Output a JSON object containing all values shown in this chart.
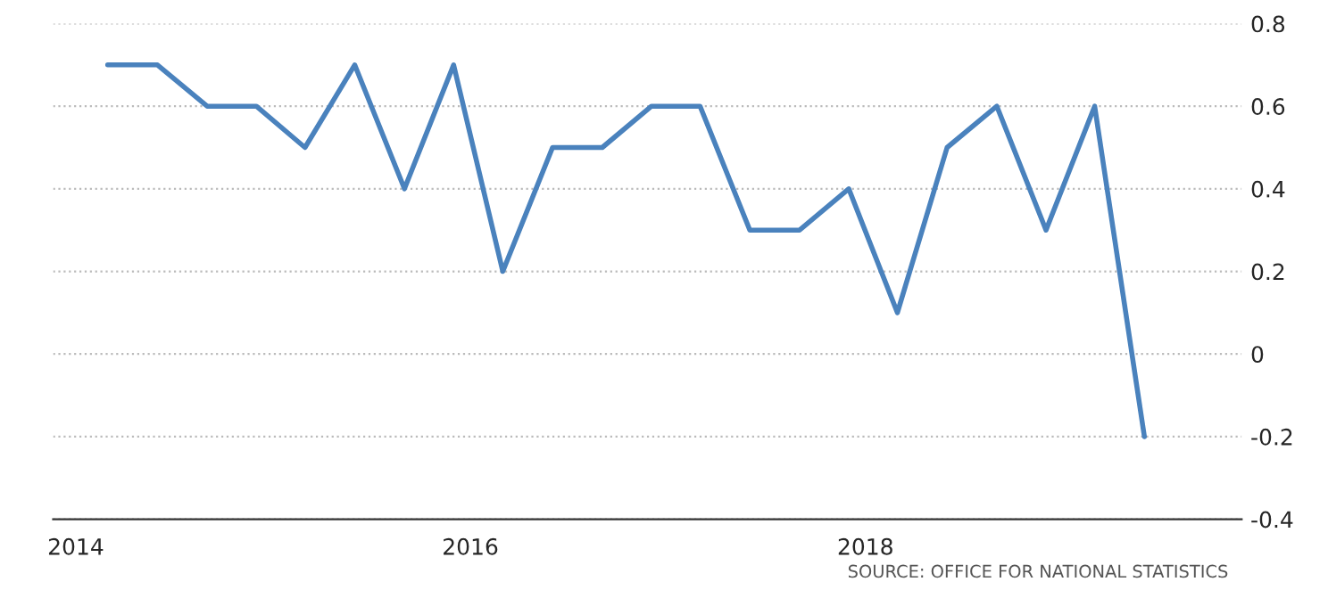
{
  "chart_data": {
    "type": "line",
    "x": [
      "2014-03",
      "2014-06",
      "2014-09",
      "2014-12",
      "2015-03",
      "2015-06",
      "2015-09",
      "2015-12",
      "2016-03",
      "2016-06",
      "2016-09",
      "2016-12",
      "2017-03",
      "2017-06",
      "2017-09",
      "2017-12",
      "2018-03",
      "2018-06",
      "2018-09",
      "2018-12",
      "2019-03",
      "2019-06"
    ],
    "series": [
      {
        "color": "#4a82bd",
        "values": [
          0.7,
          0.7,
          0.6,
          0.6,
          0.5,
          0.7,
          0.4,
          0.7,
          0.2,
          0.5,
          0.5,
          0.6,
          0.6,
          0.3,
          0.3,
          0.4,
          0.1,
          0.5,
          0.6,
          0.3,
          0.6,
          -0.2
        ]
      }
    ],
    "xlim": [
      "2013-11-20",
      "2019-11-28"
    ],
    "xticks": [
      {
        "value": "2014",
        "label": "2014"
      },
      {
        "value": "2016",
        "label": "2016"
      },
      {
        "value": "2018",
        "label": "2018"
      }
    ],
    "ylim": [
      -0.4,
      0.8
    ],
    "yticks": [
      -0.4,
      -0.2,
      0,
      0.2,
      0.4,
      0.6,
      0.8
    ],
    "grid": "y",
    "marker": "none",
    "line_style": "solid",
    "annotations": [
      "SOURCE: OFFICE FOR NATIONAL STATISTICS"
    ]
  }
}
